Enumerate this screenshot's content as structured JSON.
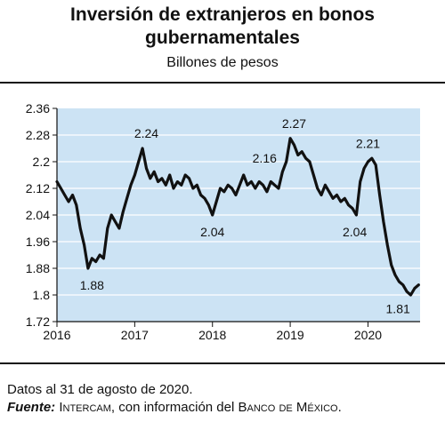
{
  "title_line1": "Inversión de extranjeros en bonos",
  "title_line2": "gubernamentales",
  "subtitle": "Billones de pesos",
  "footer": {
    "note": "Datos al 31 de agosto de 2020.",
    "source_lead": "Fuente:",
    "source_org": "Intercam",
    "source_mid": ", con información del ",
    "source_bank": "Banco de México",
    "source_end": "."
  },
  "colors": {
    "plot_bg": "#cce3f4",
    "line": "#111111",
    "grid": "#ffffff",
    "frame": "#111111"
  },
  "chart_data": {
    "type": "line",
    "title": "Inversión de extranjeros en bonos gubernamentales",
    "subtitle": "Billones de pesos",
    "xlabel": "",
    "ylabel": "",
    "xlim": [
      2016.0,
      2020.67
    ],
    "ylim": [
      1.72,
      2.36
    ],
    "x_ticks": [
      2016,
      2017,
      2018,
      2019,
      2020
    ],
    "x_tick_labels": [
      "2016",
      "2017",
      "2018",
      "2019",
      "2020"
    ],
    "y_ticks": [
      1.72,
      1.8,
      1.88,
      1.96,
      2.04,
      2.12,
      2.2,
      2.28,
      2.36
    ],
    "y_tick_labels": [
      "1.72",
      "1.8",
      "1.88",
      "1.96",
      "2.04",
      "2.12",
      "2.2",
      "2.28",
      "2.36"
    ],
    "grid": "horizontal",
    "series": [
      {
        "name": "",
        "x": [
          2016.0,
          2016.05,
          2016.1,
          2016.15,
          2016.2,
          2016.25,
          2016.3,
          2016.35,
          2016.4,
          2016.45,
          2016.5,
          2016.55,
          2016.6,
          2016.65,
          2016.7,
          2016.75,
          2016.8,
          2016.85,
          2016.9,
          2016.95,
          2017.0,
          2017.05,
          2017.1,
          2017.15,
          2017.2,
          2017.25,
          2017.3,
          2017.35,
          2017.4,
          2017.45,
          2017.5,
          2017.55,
          2017.6,
          2017.65,
          2017.7,
          2017.75,
          2017.8,
          2017.85,
          2017.9,
          2017.95,
          2018.0,
          2018.05,
          2018.1,
          2018.15,
          2018.2,
          2018.25,
          2018.3,
          2018.35,
          2018.4,
          2018.45,
          2018.5,
          2018.55,
          2018.6,
          2018.65,
          2018.7,
          2018.75,
          2018.8,
          2018.85,
          2018.9,
          2018.95,
          2019.0,
          2019.05,
          2019.1,
          2019.15,
          2019.2,
          2019.25,
          2019.3,
          2019.35,
          2019.4,
          2019.45,
          2019.5,
          2019.55,
          2019.6,
          2019.65,
          2019.7,
          2019.75,
          2019.8,
          2019.85,
          2019.9,
          2019.95,
          2020.0,
          2020.05,
          2020.1,
          2020.15,
          2020.2,
          2020.25,
          2020.3,
          2020.35,
          2020.4,
          2020.45,
          2020.5,
          2020.55,
          2020.6,
          2020.65
        ],
        "values": [
          2.14,
          2.12,
          2.1,
          2.08,
          2.1,
          2.07,
          2.0,
          1.95,
          1.88,
          1.91,
          1.9,
          1.92,
          1.91,
          2.0,
          2.04,
          2.02,
          2.0,
          2.05,
          2.09,
          2.13,
          2.16,
          2.2,
          2.24,
          2.18,
          2.15,
          2.17,
          2.14,
          2.15,
          2.13,
          2.16,
          2.12,
          2.14,
          2.13,
          2.16,
          2.15,
          2.12,
          2.13,
          2.1,
          2.09,
          2.07,
          2.04,
          2.08,
          2.12,
          2.11,
          2.13,
          2.12,
          2.1,
          2.13,
          2.16,
          2.13,
          2.14,
          2.12,
          2.14,
          2.13,
          2.11,
          2.14,
          2.13,
          2.12,
          2.17,
          2.2,
          2.27,
          2.25,
          2.22,
          2.23,
          2.21,
          2.2,
          2.16,
          2.12,
          2.1,
          2.13,
          2.11,
          2.09,
          2.1,
          2.08,
          2.09,
          2.07,
          2.06,
          2.04,
          2.14,
          2.18,
          2.2,
          2.21,
          2.19,
          2.1,
          2.02,
          1.95,
          1.89,
          1.86,
          1.84,
          1.83,
          1.81,
          1.8,
          1.82,
          1.83
        ]
      }
    ],
    "annotations": [
      {
        "text": "1.88",
        "x": 2016.45,
        "y": 1.88
      },
      {
        "text": "2.24",
        "x": 2017.15,
        "y": 2.24
      },
      {
        "text": "2.04",
        "x": 2018.0,
        "y": 2.04
      },
      {
        "text": "2.16",
        "x": 2018.67,
        "y": 2.16
      },
      {
        "text": "2.27",
        "x": 2019.05,
        "y": 2.27
      },
      {
        "text": "2.21",
        "x": 2020.0,
        "y": 2.21
      },
      {
        "text": "2.04",
        "x": 2019.83,
        "y": 2.04
      },
      {
        "text": "1.81",
        "x": 2020.5,
        "y": 1.81
      }
    ]
  }
}
